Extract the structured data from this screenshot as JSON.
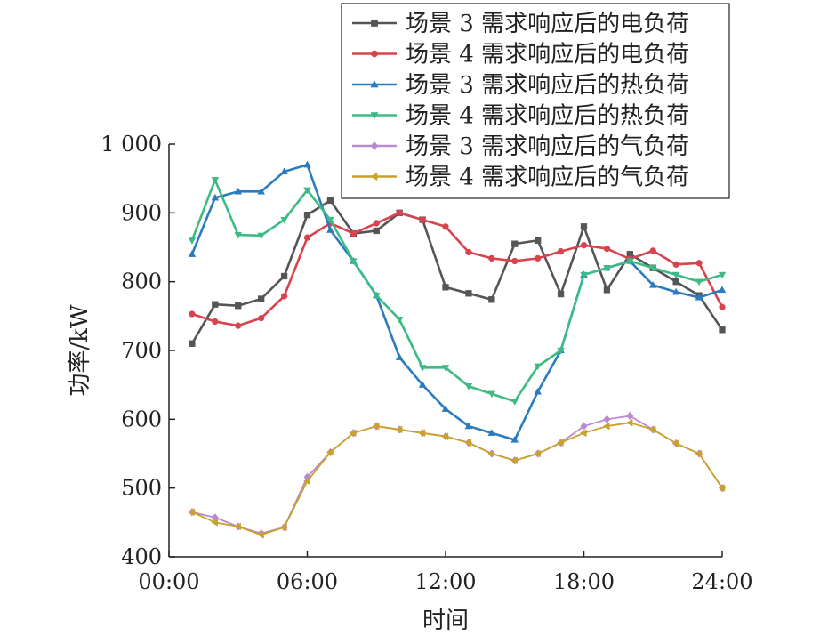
{
  "chart_data": {
    "type": "line",
    "title": "",
    "xlabel": "时间",
    "ylabel": "功率/kW",
    "xlim": [
      0,
      24
    ],
    "ylim": [
      400,
      1000
    ],
    "x_ticks": [
      {
        "value": 0,
        "label": "00:00"
      },
      {
        "value": 6,
        "label": "06:00"
      },
      {
        "value": 12,
        "label": "12:00"
      },
      {
        "value": 18,
        "label": "18:00"
      },
      {
        "value": 24,
        "label": "24:00"
      }
    ],
    "y_ticks": [
      {
        "value": 400,
        "label": "400"
      },
      {
        "value": 500,
        "label": "500"
      },
      {
        "value": 600,
        "label": "600"
      },
      {
        "value": 700,
        "label": "700"
      },
      {
        "value": 800,
        "label": "800"
      },
      {
        "value": 900,
        "label": "900"
      },
      {
        "value": 1000,
        "label": "1 000"
      }
    ],
    "grid": false,
    "legend_position": "top-right",
    "x": [
      1,
      2,
      3,
      4,
      5,
      6,
      7,
      8,
      9,
      10,
      11,
      12,
      13,
      14,
      15,
      16,
      17,
      18,
      19,
      20,
      21,
      22,
      23,
      24
    ],
    "series": [
      {
        "name": "场景 3 需求响应后的电负荷",
        "color": "#555555",
        "marker": "square",
        "values": [
          710,
          767,
          765,
          775,
          808,
          897,
          918,
          870,
          874,
          900,
          890,
          792,
          783,
          774,
          855,
          860,
          782,
          880,
          788,
          840,
          820,
          800,
          780,
          730
        ]
      },
      {
        "name": "场景 4 需求响应后的电负荷",
        "color": "#d9434e",
        "marker": "circle",
        "values": [
          753,
          742,
          736,
          747,
          779,
          864,
          885,
          870,
          885,
          900,
          890,
          880,
          843,
          834,
          830,
          834,
          844,
          853,
          848,
          833,
          845,
          825,
          827,
          763
        ]
      },
      {
        "name": "场景 3 需求响应后的热负荷",
        "color": "#2b7bbf",
        "marker": "triangle-up",
        "values": [
          840,
          922,
          931,
          931,
          960,
          970,
          875,
          830,
          780,
          690,
          650,
          615,
          590,
          580,
          570,
          640,
          700,
          810,
          820,
          830,
          795,
          785,
          777,
          788
        ]
      },
      {
        "name": "场景 4 需求响应后的热负荷",
        "color": "#3dbb85",
        "marker": "triangle-down",
        "values": [
          860,
          948,
          868,
          867,
          890,
          933,
          890,
          830,
          780,
          745,
          675,
          675,
          648,
          637,
          626,
          677,
          700,
          810,
          820,
          830,
          820,
          810,
          800,
          810
        ]
      },
      {
        "name": "场景 3 需求响应后的气负荷",
        "color": "#b98ad0",
        "marker": "diamond",
        "values": [
          465,
          457,
          444,
          434,
          443,
          516,
          552,
          580,
          590,
          585,
          580,
          575,
          566,
          550,
          540,
          550,
          566,
          590,
          600,
          605,
          585,
          565,
          550,
          500
        ]
      },
      {
        "name": "场景 4 需求响应后的气负荷",
        "color": "#c9a227",
        "marker": "triangle-left",
        "values": [
          465,
          450,
          444,
          432,
          443,
          510,
          552,
          580,
          590,
          585,
          580,
          575,
          566,
          550,
          540,
          550,
          566,
          580,
          590,
          595,
          585,
          565,
          550,
          500
        ]
      }
    ]
  }
}
